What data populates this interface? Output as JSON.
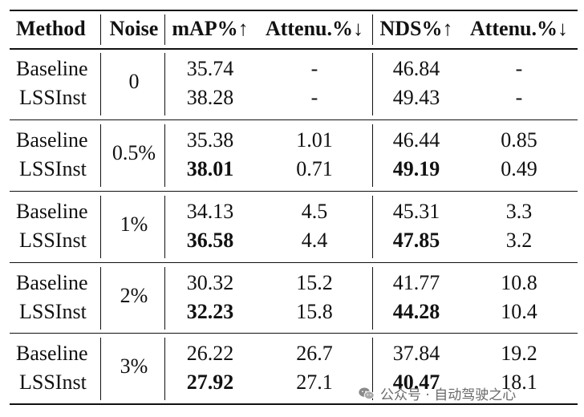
{
  "headers": {
    "method": "Method",
    "noise": "Noise",
    "map": "mAP%↑",
    "attenu1": "Attenu.%↓",
    "nds": "NDS%↑",
    "attenu2": "Attenu.%↓"
  },
  "groups": [
    {
      "noise": "0",
      "rows": [
        {
          "method": "Baseline",
          "map": "35.74",
          "attenu1": "-",
          "nds": "46.84",
          "attenu2": "-"
        },
        {
          "method": "LSSInst",
          "map": "38.28",
          "attenu1": "-",
          "nds": "49.43",
          "attenu2": "-"
        }
      ]
    },
    {
      "noise": "0.5%",
      "rows": [
        {
          "method": "Baseline",
          "map": "35.38",
          "attenu1": "1.01",
          "nds": "46.44",
          "attenu2": "0.85"
        },
        {
          "method": "LSSInst",
          "map": "38.01",
          "attenu1": "0.71",
          "nds": "49.19",
          "attenu2": "0.49"
        }
      ]
    },
    {
      "noise": "1%",
      "rows": [
        {
          "method": "Baseline",
          "map": "34.13",
          "attenu1": "4.5",
          "nds": "45.31",
          "attenu2": "3.3"
        },
        {
          "method": "LSSInst",
          "map": "36.58",
          "attenu1": "4.4",
          "nds": "47.85",
          "attenu2": "3.2"
        }
      ]
    },
    {
      "noise": "2%",
      "rows": [
        {
          "method": "Baseline",
          "map": "30.32",
          "attenu1": "15.2",
          "nds": "41.77",
          "attenu2": "10.8"
        },
        {
          "method": "LSSInst",
          "map": "32.23",
          "attenu1": "15.8",
          "nds": "44.28",
          "attenu2": "10.4"
        }
      ]
    },
    {
      "noise": "3%",
      "rows": [
        {
          "method": "Baseline",
          "map": "26.22",
          "attenu1": "26.7",
          "nds": "37.84",
          "attenu2": "19.2"
        },
        {
          "method": "LSSInst",
          "map": "27.92",
          "attenu1": "27.1",
          "nds": "40.47",
          "attenu2": "18.1"
        }
      ]
    }
  ],
  "watermark": {
    "icon": "wechat-icon",
    "text": "公众号 · 自动驾驶之心"
  }
}
